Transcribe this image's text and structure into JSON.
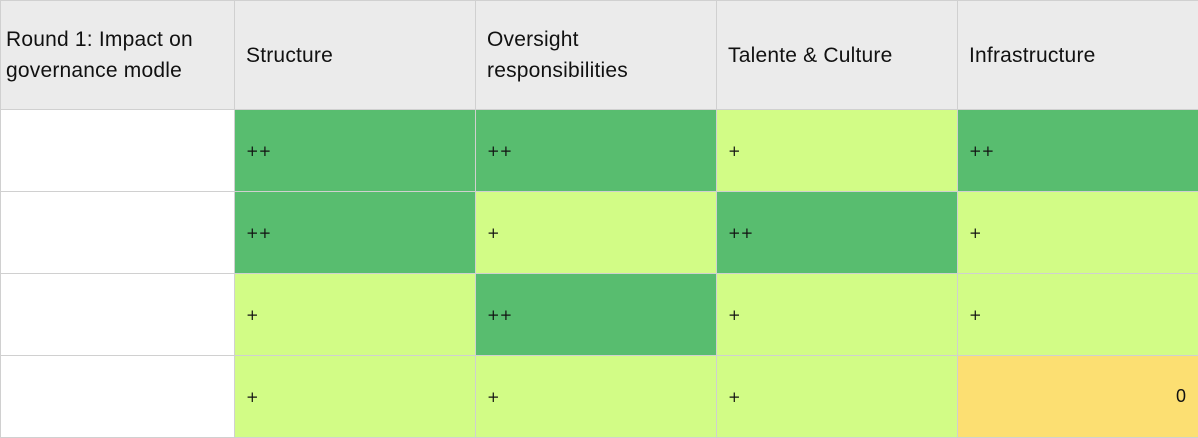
{
  "header": {
    "corner": "Round 1: Impact on governance modle",
    "columns": [
      "Structure",
      "Oversight responsibilities",
      "Talente & Culture",
      "Infrastructure"
    ]
  },
  "colors": {
    "strong": "#58bd6f",
    "moderate": "#d2fc86",
    "neutral": "#fcdf72"
  },
  "rows": [
    {
      "label": "",
      "cells": [
        {
          "text": "++",
          "level": "strong"
        },
        {
          "text": "++",
          "level": "strong"
        },
        {
          "text": "+",
          "level": "moderate"
        },
        {
          "text": "++",
          "level": "strong"
        }
      ]
    },
    {
      "label": "",
      "cells": [
        {
          "text": "++",
          "level": "strong"
        },
        {
          "text": "+",
          "level": "moderate"
        },
        {
          "text": "++",
          "level": "strong"
        },
        {
          "text": "+",
          "level": "moderate"
        }
      ]
    },
    {
      "label": "",
      "cells": [
        {
          "text": "+",
          "level": "moderate"
        },
        {
          "text": "++",
          "level": "strong"
        },
        {
          "text": "+",
          "level": "moderate"
        },
        {
          "text": "+",
          "level": "moderate"
        }
      ]
    },
    {
      "label": "",
      "cells": [
        {
          "text": "+",
          "level": "moderate"
        },
        {
          "text": "+",
          "level": "moderate"
        },
        {
          "text": "+",
          "level": "moderate"
        },
        {
          "text": "0",
          "level": "neutral"
        }
      ]
    }
  ]
}
